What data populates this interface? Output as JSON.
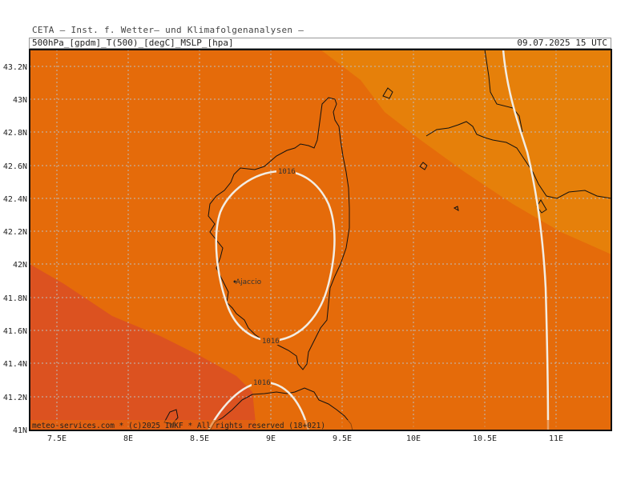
{
  "header": {
    "institute": "CETA — Inst. f. Wetter— und Klimafolgenanalysen —",
    "parameters": "500hPa_[gpdm]_T(500)_[degC]_MSLP_[hpa]",
    "valid_time": "09.07.2025 15 UTC"
  },
  "map": {
    "region": "Corsica",
    "lon_ticks": [
      "7.5E",
      "8E",
      "8.5E",
      "9E",
      "9.5E",
      "10E",
      "10.5E",
      "11E"
    ],
    "lat_ticks": [
      "43.2N",
      "43N",
      "42.8N",
      "42.6N",
      "42.4N",
      "42.2N",
      "42N",
      "41.8N",
      "41.6N",
      "41.4N",
      "41.2N",
      "41N"
    ],
    "isobar_labels": [
      "1016",
      "1016",
      "1016"
    ],
    "city": "Ajaccio",
    "footer": "meteo-services.com * (c)2025 IWKF * All rights reserved (18+021)",
    "colors": {
      "zone_northeast": "#E6800A",
      "zone_middle": "#E56B0A",
      "zone_southwest": "#DC5220",
      "isobar": "#F2EDE4",
      "coastline": "#111111",
      "grid": "#BDBDBD"
    }
  }
}
